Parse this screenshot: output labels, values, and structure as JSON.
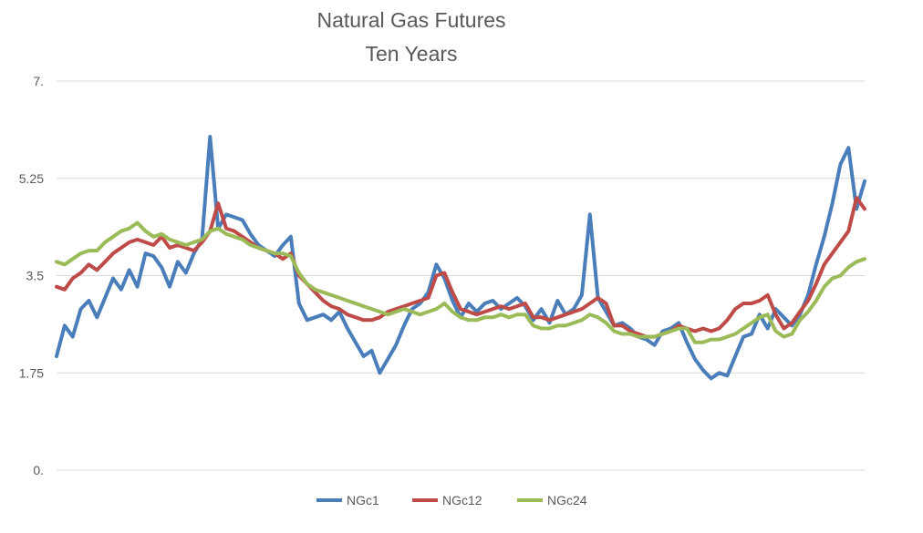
{
  "chart_data": {
    "type": "line",
    "title": [
      "Natural Gas Futures",
      "Ten Years"
    ],
    "xlabel": "",
    "ylabel": "",
    "ylim": [
      0,
      7
    ],
    "yticks": [
      0,
      1.75,
      3.5,
      5.25,
      7
    ],
    "ytick_labels": [
      "0.",
      "1.75",
      "3.5",
      "5.25",
      "7."
    ],
    "grid": true,
    "legend": "bottom",
    "colors": {
      "NGc1": "#4a7ebb",
      "NGc12": "#be4b48",
      "NGc24": "#9bbb59"
    },
    "x": [
      0,
      1,
      2,
      3,
      4,
      5,
      6,
      7,
      8,
      9,
      10,
      11,
      12,
      13,
      14,
      15,
      16,
      17,
      18,
      19,
      20,
      21,
      22,
      23,
      24,
      25,
      26,
      27,
      28,
      29,
      30,
      31,
      32,
      33,
      34,
      35,
      36,
      37,
      38,
      39,
      40,
      41,
      42,
      43,
      44,
      45,
      46,
      47,
      48,
      49,
      50,
      51,
      52,
      53,
      54,
      55,
      56,
      57,
      58,
      59,
      60,
      61,
      62,
      63,
      64,
      65,
      66,
      67,
      68,
      69,
      70,
      71,
      72,
      73,
      74,
      75,
      76,
      77,
      78,
      79,
      80,
      81,
      82,
      83,
      84,
      85,
      86,
      87,
      88,
      89,
      90,
      91,
      92,
      93,
      94,
      95,
      96,
      97,
      98,
      99,
      100
    ],
    "series": [
      {
        "name": "NGc1",
        "values": [
          2.05,
          2.6,
          2.4,
          2.9,
          3.05,
          2.75,
          3.1,
          3.45,
          3.25,
          3.6,
          3.3,
          3.9,
          3.85,
          3.65,
          3.3,
          3.75,
          3.55,
          3.9,
          4.15,
          6.0,
          4.35,
          4.6,
          4.55,
          4.5,
          4.25,
          4.05,
          3.95,
          3.85,
          4.05,
          4.2,
          3.0,
          2.7,
          2.75,
          2.8,
          2.7,
          2.85,
          2.55,
          2.3,
          2.05,
          2.15,
          1.75,
          2.0,
          2.25,
          2.6,
          2.9,
          3.0,
          3.2,
          3.7,
          3.45,
          3.05,
          2.75,
          3.0,
          2.85,
          3.0,
          3.05,
          2.9,
          3.0,
          3.1,
          2.95,
          2.7,
          2.9,
          2.65,
          3.05,
          2.8,
          2.9,
          3.15,
          4.6,
          3.1,
          2.85,
          2.6,
          2.65,
          2.55,
          2.4,
          2.35,
          2.25,
          2.5,
          2.55,
          2.65,
          2.3,
          2.0,
          1.8,
          1.65,
          1.75,
          1.7,
          2.05,
          2.4,
          2.45,
          2.8,
          2.55,
          2.9,
          2.75,
          2.6,
          2.8,
          3.15,
          3.7,
          4.2,
          4.8,
          5.5,
          5.8,
          4.7,
          5.2
        ]
      },
      {
        "name": "NGc12",
        "values": [
          3.3,
          3.25,
          3.45,
          3.55,
          3.7,
          3.6,
          3.75,
          3.9,
          4.0,
          4.1,
          4.15,
          4.1,
          4.05,
          4.2,
          4.0,
          4.05,
          4.0,
          3.95,
          4.1,
          4.3,
          4.8,
          4.35,
          4.3,
          4.2,
          4.1,
          4.0,
          3.95,
          3.9,
          3.8,
          3.9,
          3.5,
          3.35,
          3.2,
          3.05,
          2.95,
          2.9,
          2.8,
          2.75,
          2.7,
          2.7,
          2.75,
          2.85,
          2.9,
          2.95,
          3.0,
          3.05,
          3.1,
          3.5,
          3.55,
          3.2,
          2.9,
          2.85,
          2.8,
          2.85,
          2.9,
          2.95,
          2.9,
          2.95,
          3.0,
          2.75,
          2.75,
          2.7,
          2.75,
          2.8,
          2.85,
          2.9,
          3.0,
          3.1,
          3.0,
          2.6,
          2.6,
          2.5,
          2.45,
          2.4,
          2.4,
          2.45,
          2.5,
          2.6,
          2.55,
          2.5,
          2.55,
          2.5,
          2.55,
          2.7,
          2.9,
          3.0,
          3.0,
          3.05,
          3.15,
          2.8,
          2.55,
          2.65,
          2.85,
          3.05,
          3.35,
          3.7,
          3.9,
          4.1,
          4.3,
          4.9,
          4.7
        ]
      },
      {
        "name": "NGc24",
        "values": [
          3.75,
          3.7,
          3.8,
          3.9,
          3.95,
          3.95,
          4.1,
          4.2,
          4.3,
          4.35,
          4.45,
          4.3,
          4.2,
          4.25,
          4.15,
          4.1,
          4.05,
          4.1,
          4.15,
          4.3,
          4.35,
          4.25,
          4.2,
          4.15,
          4.05,
          4.0,
          3.95,
          3.9,
          3.9,
          3.85,
          3.55,
          3.35,
          3.25,
          3.2,
          3.15,
          3.1,
          3.05,
          3.0,
          2.95,
          2.9,
          2.85,
          2.8,
          2.85,
          2.9,
          2.85,
          2.8,
          2.85,
          2.9,
          3.0,
          2.85,
          2.75,
          2.7,
          2.7,
          2.75,
          2.75,
          2.8,
          2.75,
          2.8,
          2.8,
          2.6,
          2.55,
          2.55,
          2.6,
          2.6,
          2.65,
          2.7,
          2.8,
          2.75,
          2.65,
          2.5,
          2.45,
          2.45,
          2.4,
          2.4,
          2.4,
          2.45,
          2.5,
          2.55,
          2.55,
          2.3,
          2.3,
          2.35,
          2.35,
          2.4,
          2.45,
          2.55,
          2.65,
          2.75,
          2.8,
          2.5,
          2.4,
          2.45,
          2.7,
          2.85,
          3.05,
          3.3,
          3.45,
          3.5,
          3.65,
          3.75,
          3.8
        ]
      }
    ]
  }
}
